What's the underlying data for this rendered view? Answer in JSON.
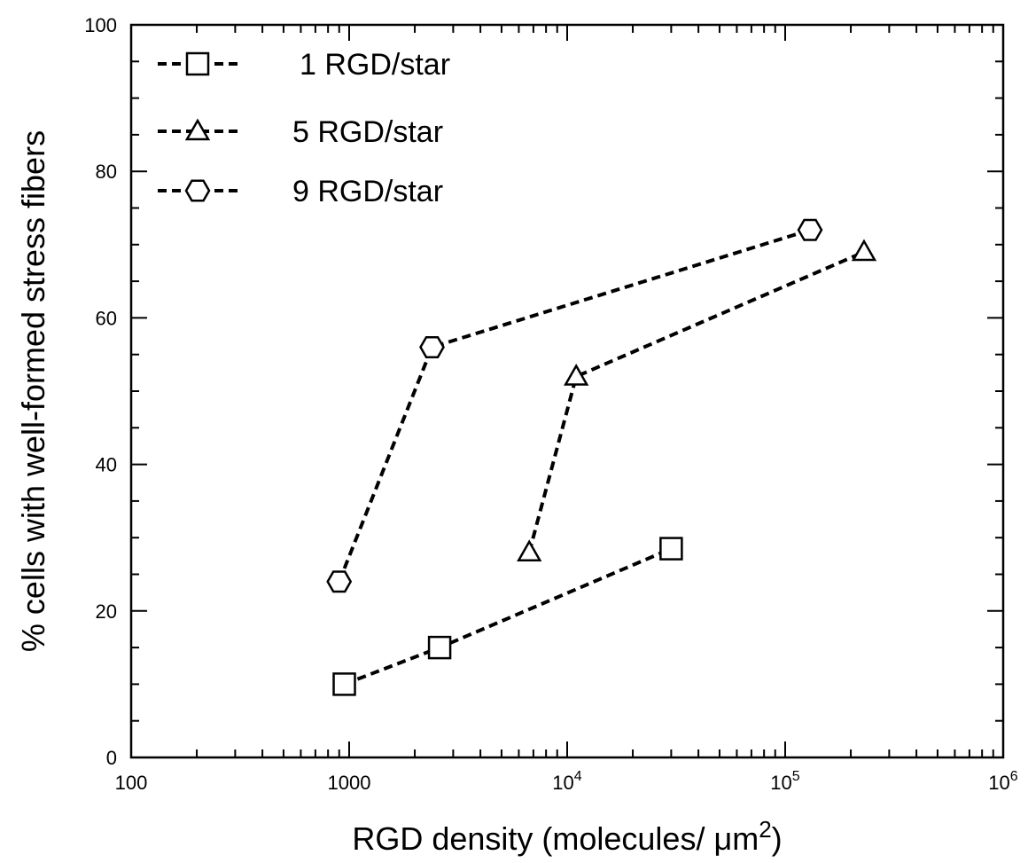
{
  "chart_data": {
    "type": "scatter",
    "xscale": "log",
    "xlim": [
      100,
      1000000
    ],
    "ylim": [
      0,
      100
    ],
    "xlabel": "RGD density (molecules/ μm",
    "xlabel_sup": "2",
    "xlabel_end": ")",
    "ylabel": "% cells with well-formed stress fibers",
    "x_ticks": [
      {
        "value": 100,
        "label": "100"
      },
      {
        "value": 1000,
        "label": "1000"
      },
      {
        "value": 10000,
        "label": "10",
        "sup": "4"
      },
      {
        "value": 100000,
        "label": "10",
        "sup": "5"
      },
      {
        "value": 1000000,
        "label": "10",
        "sup": "6"
      }
    ],
    "y_ticks": [
      0,
      20,
      40,
      60,
      80,
      100
    ],
    "y_tick_labels": [
      "0",
      "20",
      "40",
      "60",
      "80",
      "100"
    ],
    "legend_position": "top-left",
    "series": [
      {
        "name": "1 RGD/star",
        "marker": "square",
        "x": [
          950,
          2600,
          30000
        ],
        "y": [
          10,
          15,
          28.5
        ]
      },
      {
        "name": "5 RGD/star",
        "marker": "triangle",
        "x": [
          6700,
          11000,
          230000
        ],
        "y": [
          28,
          52,
          69
        ]
      },
      {
        "name": "9 RGD/star",
        "marker": "hexagon",
        "x": [
          900,
          2400,
          130000
        ],
        "y": [
          24,
          56,
          72
        ]
      }
    ],
    "line_style": "dashed",
    "grid": false
  }
}
